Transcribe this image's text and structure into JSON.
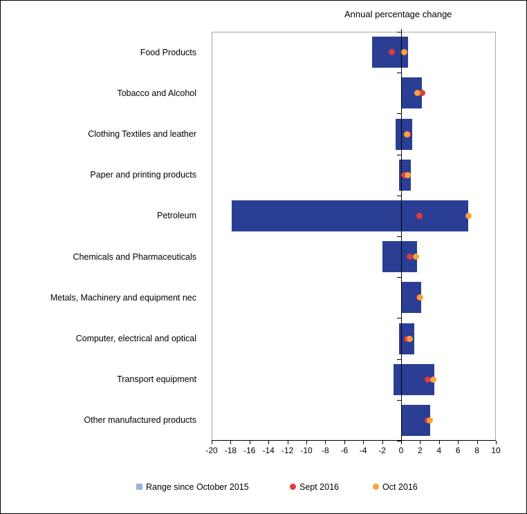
{
  "window": {
    "background_color": "#ffffff",
    "border_color": "#000000"
  },
  "chart_data": {
    "type": "bar",
    "subtype": "horizontal-range-bar-with-dot-markers",
    "title": "Annual percentage change",
    "orientation": "horizontal",
    "grid": false,
    "legend_position": "bottom",
    "categories": [
      "Food Products",
      "Tobacco and Alcohol",
      "Clothing Textiles and leather",
      "Paper and printing products",
      "Petroleum",
      "Chemicals and Pharmaceuticals",
      "Metals, Machinery and equipment nec",
      "Computer, electrical and optical",
      "Transport equipment",
      "Other manufactured products"
    ],
    "series": [
      {
        "name": "Range since October 2015",
        "type": "range-bar",
        "bar_color": "#2a3e94",
        "legend_marker": "square",
        "legend_color": "#95b3d7",
        "low": [
          -3.1,
          0.0,
          -0.6,
          -0.2,
          -17.9,
          -2.0,
          0.0,
          -0.2,
          -0.8,
          0.0
        ],
        "high": [
          0.7,
          2.2,
          1.2,
          1.0,
          7.1,
          1.7,
          2.1,
          1.4,
          3.5,
          3.1
        ]
      },
      {
        "name": "Sept 2016",
        "type": "dot",
        "color": "#e03b40",
        "legend_marker": "circle",
        "values": [
          -1.0,
          2.2,
          0.7,
          0.3,
          1.9,
          0.9,
          1.9,
          0.6,
          2.8,
          2.8
        ]
      },
      {
        "name": "Oct 2016",
        "type": "dot",
        "color": "#f9a23c",
        "legend_marker": "circle",
        "values": [
          0.3,
          1.7,
          0.6,
          0.7,
          7.1,
          1.6,
          2.0,
          0.9,
          3.4,
          3.0
        ]
      }
    ],
    "x_axis": {
      "min": -20,
      "max": 10,
      "tick_step": 2,
      "tick_labels": [
        "-20",
        "-18",
        "-16",
        "-14",
        "-12",
        "-10",
        "-8",
        "-6",
        "-4",
        "-2",
        "0",
        "2",
        "4",
        "6",
        "8",
        "10"
      ]
    },
    "axis_colors": {
      "frame": "#a6a6a6",
      "axis_line": "#000000",
      "text": "#000000"
    },
    "legend": [
      {
        "label": "Range since October 2015",
        "marker": "square",
        "color": "#95b3d7"
      },
      {
        "label": "Sept 2016",
        "marker": "circle",
        "color": "#e03b40"
      },
      {
        "label": "Oct 2016",
        "marker": "circle",
        "color": "#f9a23c"
      }
    ]
  }
}
